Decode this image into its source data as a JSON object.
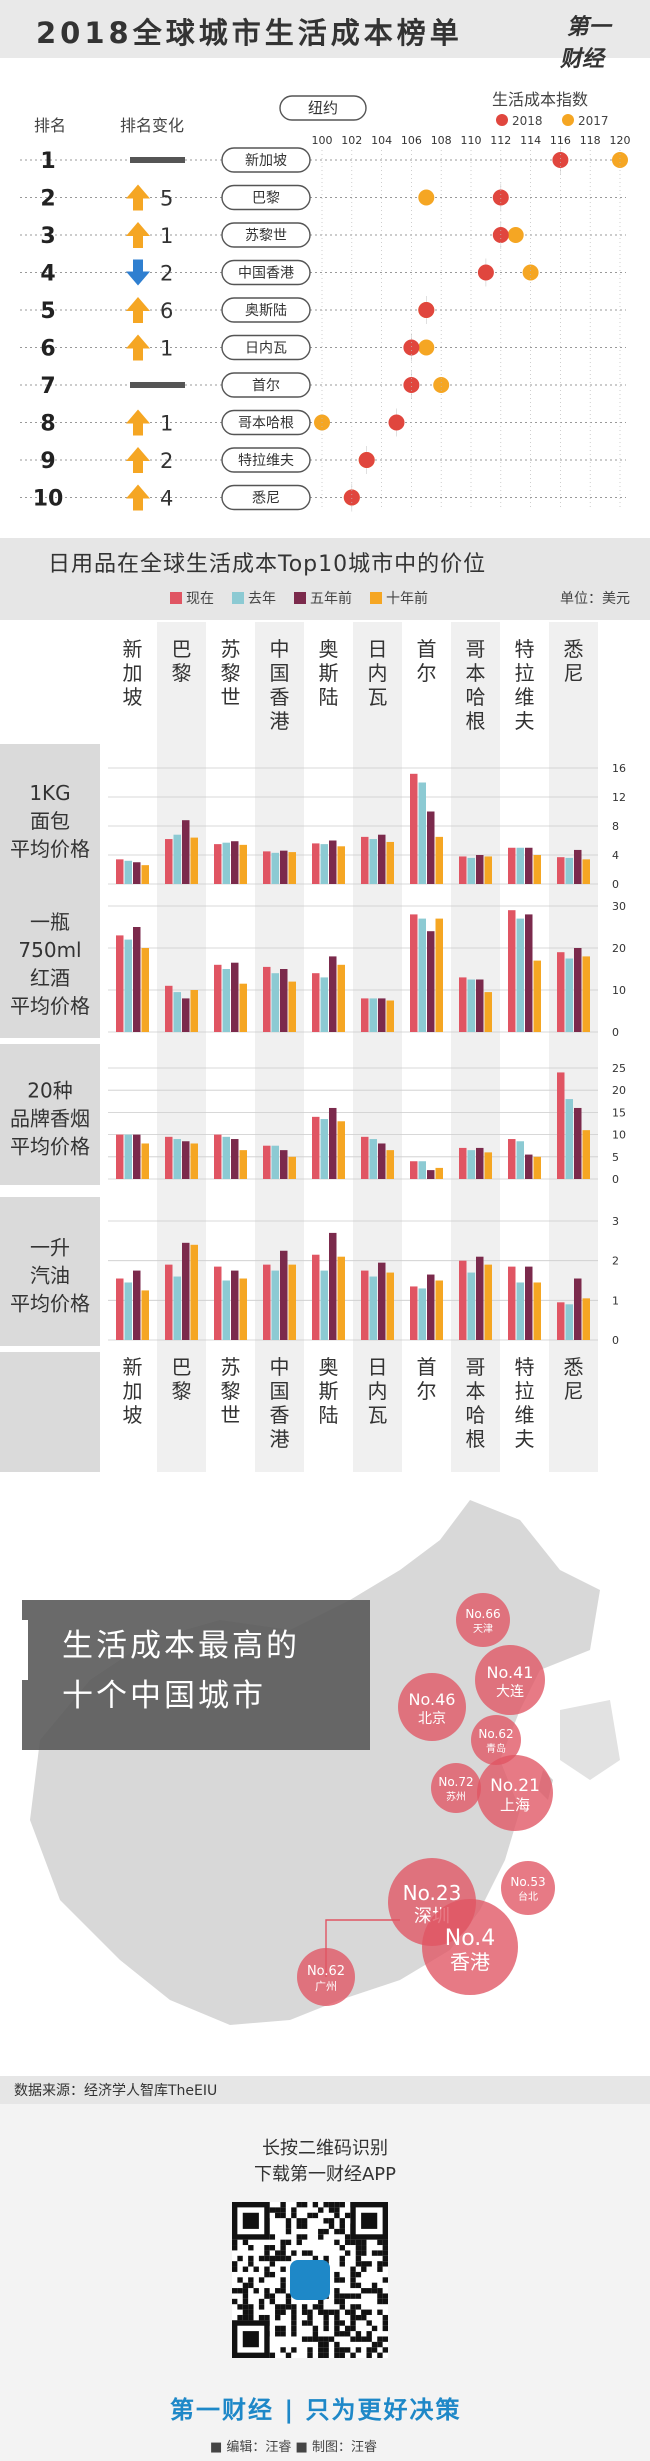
{
  "header": {
    "title": "2018全球城市生活成本榜单",
    "logo": "第一财经"
  },
  "ranking": {
    "col_rank": "排名",
    "col_change": "排名变化",
    "baseline_chip": "纽约",
    "legend_title": "生活成本指数",
    "legend_2018": "2018",
    "legend_2017": "2017",
    "colors": {
      "y2018": "#e0463e",
      "y2017": "#f5a623",
      "up": "#f5a623",
      "down": "#2f7fd0",
      "same": "#555555"
    }
  },
  "chart_data": [
    {
      "type": "scatter",
      "title": "2018全球城市生活成本榜单",
      "xlabel": "",
      "ylabel": "",
      "xlim": [
        100,
        120
      ],
      "xticks": [
        100,
        102,
        104,
        106,
        108,
        110,
        112,
        114,
        116,
        118,
        120
      ],
      "legend_title": "生活成本指数",
      "series_names": [
        "2018",
        "2017"
      ],
      "rows": [
        {
          "rank": "1",
          "change_dir": "same",
          "change": "",
          "city": "新加坡",
          "v2018": 116,
          "v2017": 120
        },
        {
          "rank": "2",
          "change_dir": "up",
          "change": "5",
          "city": "巴黎",
          "v2018": 112,
          "v2017": 107
        },
        {
          "rank": "3",
          "change_dir": "up",
          "change": "1",
          "city": "苏黎世",
          "v2018": 112,
          "v2017": 113
        },
        {
          "rank": "4",
          "change_dir": "down",
          "change": "2",
          "city": "中国香港",
          "v2018": 111,
          "v2017": 114
        },
        {
          "rank": "5",
          "change_dir": "up",
          "change": "6",
          "city": "奥斯陆",
          "v2018": 107,
          "v2017": 107
        },
        {
          "rank": "6",
          "change_dir": "up",
          "change": "1",
          "city": "日内瓦",
          "v2018": 106,
          "v2017": 107
        },
        {
          "rank": "7",
          "change_dir": "same",
          "change": "",
          "city": "首尔",
          "v2018": 106,
          "v2017": 108
        },
        {
          "rank": "8",
          "change_dir": "up",
          "change": "1",
          "city": "哥本哈根",
          "v2018": 105,
          "v2017": 100
        },
        {
          "rank": "9",
          "change_dir": "up",
          "change": "2",
          "city": "特拉维夫",
          "v2018": 103,
          "v2017": 103
        },
        {
          "rank": "10",
          "change_dir": "up",
          "change": "4",
          "city": "悉尼",
          "v2018": 102,
          "v2017": 102
        }
      ]
    },
    {
      "type": "bar",
      "title": "日用品在全球生活成本Top10城市中的价位",
      "unit": "单位：美元",
      "categories": [
        "新加坡",
        "巴黎",
        "苏黎世",
        "中国香港",
        "奥斯陆",
        "日内瓦",
        "首尔",
        "哥本哈根",
        "特拉维夫",
        "悉尼"
      ],
      "category_labels": [
        [
          "新",
          "加",
          "坡"
        ],
        [
          "巴",
          "黎"
        ],
        [
          "苏",
          "黎",
          "世"
        ],
        [
          "中",
          "国",
          "香",
          "港"
        ],
        [
          "奥",
          "斯",
          "陆"
        ],
        [
          "日",
          "内",
          "瓦"
        ],
        [
          "首",
          "尔"
        ],
        [
          "哥",
          "本",
          "哈",
          "根"
        ],
        [
          "特",
          "拉",
          "维",
          "夫"
        ],
        [
          "悉",
          "尼"
        ]
      ],
      "series_names": [
        "现在",
        "去年",
        "五年前",
        "十年前"
      ],
      "series_colors": [
        "#e05563",
        "#8ccad3",
        "#7b2a4c",
        "#f5a623"
      ],
      "panels": [
        {
          "label": [
            "1KG",
            "面包",
            "平均价格"
          ],
          "ymax": 16,
          "ticks": [
            0,
            4,
            8,
            12,
            16
          ],
          "values": [
            [
              3.4,
              3.2,
              3.0,
              2.6
            ],
            [
              6.2,
              6.8,
              8.8,
              6.4
            ],
            [
              5.5,
              5.7,
              5.9,
              5.4
            ],
            [
              4.5,
              4.3,
              4.6,
              4.4
            ],
            [
              5.6,
              5.5,
              6.0,
              5.2
            ],
            [
              6.5,
              6.2,
              6.8,
              5.8
            ],
            [
              15.2,
              14.0,
              10.0,
              6.5
            ],
            [
              3.8,
              3.6,
              4.0,
              3.8
            ],
            [
              5.0,
              5.0,
              5.0,
              4.0
            ],
            [
              3.7,
              3.6,
              4.7,
              3.4
            ]
          ]
        },
        {
          "label": [
            "一瓶",
            "750ml",
            "红酒",
            "平均价格"
          ],
          "ymax": 30,
          "ticks": [
            0,
            10,
            20,
            30
          ],
          "values": [
            [
              23,
              22,
              25,
              20
            ],
            [
              11,
              9.5,
              8,
              10
            ],
            [
              16,
              15,
              16.5,
              11.5
            ],
            [
              15.5,
              14,
              15,
              12
            ],
            [
              14,
              13,
              18,
              16
            ],
            [
              8,
              8,
              8,
              7.5
            ],
            [
              28,
              27,
              24,
              27
            ],
            [
              13,
              12.5,
              12.5,
              9.5
            ],
            [
              29,
              27,
              28,
              17
            ],
            [
              19,
              17.5,
              20,
              18
            ]
          ]
        },
        {
          "label": [
            "20种",
            "品牌香烟",
            "平均价格"
          ],
          "ymax": 25,
          "ticks": [
            0,
            5,
            10,
            15,
            20,
            25
          ],
          "values": [
            [
              10,
              10,
              10,
              8
            ],
            [
              9.5,
              9,
              8.5,
              8
            ],
            [
              10,
              9.5,
              9,
              6.5
            ],
            [
              7.5,
              7.5,
              6.5,
              5
            ],
            [
              14,
              13.5,
              16,
              13
            ],
            [
              9.5,
              9,
              8,
              6.5
            ],
            [
              4,
              4,
              2,
              2.5
            ],
            [
              7,
              6.5,
              7,
              6
            ],
            [
              9,
              8.5,
              5.5,
              5
            ],
            [
              24,
              18,
              16,
              11
            ]
          ]
        },
        {
          "label": [
            "一升",
            "汽油",
            "平均价格"
          ],
          "ymax": 3,
          "ticks": [
            0,
            1,
            2,
            3
          ],
          "values": [
            [
              1.55,
              1.45,
              1.75,
              1.25
            ],
            [
              1.9,
              1.6,
              2.45,
              2.4
            ],
            [
              1.85,
              1.5,
              1.75,
              1.55
            ],
            [
              1.9,
              1.75,
              2.25,
              1.9
            ],
            [
              2.15,
              1.75,
              2.7,
              2.1
            ],
            [
              1.75,
              1.6,
              1.95,
              1.7
            ],
            [
              1.35,
              1.3,
              1.65,
              1.5
            ],
            [
              2.0,
              1.7,
              2.1,
              1.9
            ],
            [
              1.85,
              1.45,
              1.85,
              1.45
            ],
            [
              0.95,
              0.9,
              1.55,
              1.05
            ]
          ]
        }
      ]
    }
  ],
  "map": {
    "title_line1": "生活成本最高的",
    "title_line2": "十个中国城市",
    "cities": [
      {
        "rank": "No.66",
        "name": "天津",
        "color": "#e05563"
      },
      {
        "rank": "No.41",
        "name": "大连",
        "color": "#e05563"
      },
      {
        "rank": "No.46",
        "name": "北京",
        "color": "#e05563"
      },
      {
        "rank": "No.62",
        "name": "青岛",
        "color": "#e05563"
      },
      {
        "rank": "No.72",
        "name": "苏州",
        "color": "#e05563"
      },
      {
        "rank": "No.21",
        "name": "上海",
        "color": "#e05563"
      },
      {
        "rank": "No.53",
        "name": "台北",
        "color": "#e05563"
      },
      {
        "rank": "No.23",
        "name": "深圳",
        "color": "#e05563"
      },
      {
        "rank": "No.4",
        "name": "香港",
        "color": "#e05563"
      },
      {
        "rank": "No.62",
        "name": "广州",
        "color": "#e05563"
      }
    ]
  },
  "footer": {
    "source": "数据来源：经济学人智库TheEIU",
    "qr_line1": "长按二维码识别",
    "qr_line2": "下载第一财经APP",
    "brand": "第一财经 | 只为更好决策",
    "credits": "■ 编辑：汪睿    ■ 制图：汪睿"
  }
}
